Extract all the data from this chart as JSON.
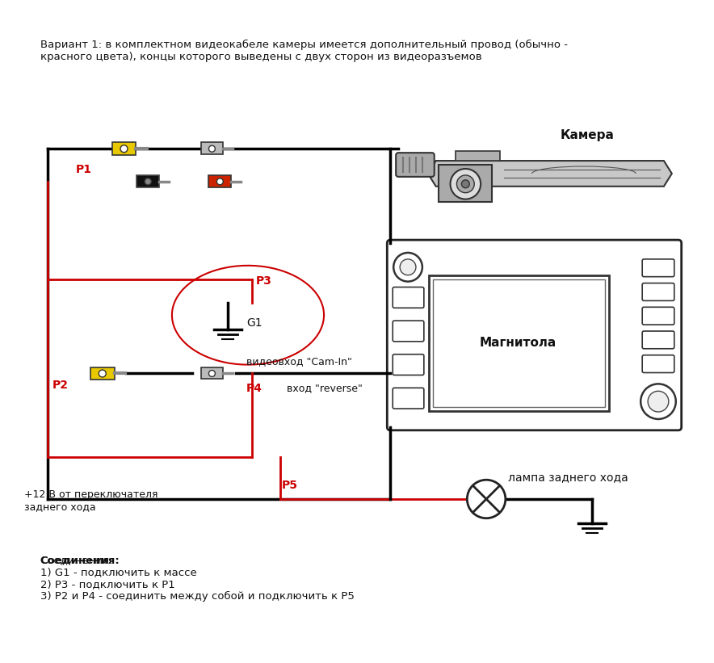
{
  "bg_color": "#ffffff",
  "title_text": "Вариант 1: в комплектном видеокабеле камеры имеется дополнительный провод (обычно -\nкрасного цвета), концы которого выведены с двух сторон из видеоразъемов",
  "label_kamera": "Камера",
  "label_magnitola": "Магнитола",
  "label_P1": "P1",
  "label_P2": "P2",
  "label_P3": "P3",
  "label_P4": "P4",
  "label_P5": "P5",
  "label_G1": "G1",
  "label_videovhod": "видеовход \"Cam-In\"",
  "label_reverse": "вход \"reverse\"",
  "label_lampa": "лампа заднего хода",
  "label_plus12": "+12 В от переключателя\nзаднего хода",
  "label_soed": "Соединения:\n1) G1 - подключить к массе\n2) Р3 - подключить к Р1\n3) Р2 и Р4 - соединить между собой и подключить к Р5",
  "wire_black": "#000000",
  "wire_red": "#cc0000",
  "color_yellow": "#e8c800",
  "color_black_plug": "#222222",
  "color_red_plug": "#cc2200",
  "color_gray": "#aaaaaa",
  "color_light_gray": "#cccccc"
}
